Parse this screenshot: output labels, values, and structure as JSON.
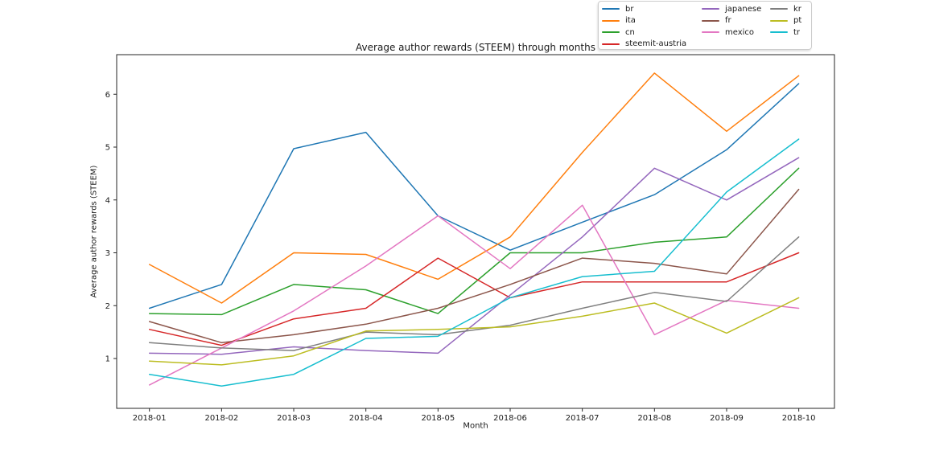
{
  "figure": {
    "background": "#ffffff",
    "spine_color": "#262626"
  },
  "chart_data": {
    "type": "line",
    "title": "Average author rewards (STEEM) through months",
    "xlabel": "Month",
    "ylabel": "Average author rewards (STEEM)",
    "categories": [
      "2018-01",
      "2018-02",
      "2018-03",
      "2018-04",
      "2018-05",
      "2018-06",
      "2018-07",
      "2018-08",
      "2018-09",
      "2018-10"
    ],
    "y_ticks": [
      1,
      2,
      3,
      4,
      5,
      6
    ],
    "ylim": [
      0.05,
      6.75
    ],
    "grid": false,
    "legend_position": "upper center, above plot, 3 columns",
    "legend_order": [
      "br",
      "ita",
      "cn",
      "steemit-austria",
      "japanese",
      "fr",
      "mexico",
      "kr",
      "pt",
      "tr"
    ],
    "series": [
      {
        "name": "br",
        "color": "#1f77b4",
        "values": [
          1.95,
          2.4,
          4.97,
          5.28,
          3.7,
          3.05,
          3.58,
          4.1,
          4.95,
          6.2
        ]
      },
      {
        "name": "ita",
        "color": "#ff7f0e",
        "values": [
          2.78,
          2.05,
          3.0,
          2.97,
          2.5,
          3.3,
          4.9,
          6.4,
          5.3,
          6.35
        ]
      },
      {
        "name": "cn",
        "color": "#2ca02c",
        "values": [
          1.85,
          1.83,
          2.4,
          2.3,
          1.85,
          3.0,
          3.0,
          3.2,
          3.3,
          4.6
        ]
      },
      {
        "name": "steemit-austria",
        "color": "#d62728",
        "values": [
          1.55,
          1.25,
          1.75,
          1.95,
          2.9,
          2.15,
          2.45,
          2.45,
          2.45,
          3.0
        ]
      },
      {
        "name": "japanese",
        "color": "#9467bd",
        "values": [
          1.1,
          1.08,
          1.22,
          1.15,
          1.1,
          2.2,
          3.3,
          4.6,
          4.0,
          4.8
        ]
      },
      {
        "name": "fr",
        "color": "#8c564b",
        "values": [
          1.7,
          1.3,
          1.45,
          1.65,
          1.95,
          2.4,
          2.9,
          2.8,
          2.6,
          4.2
        ]
      },
      {
        "name": "mexico",
        "color": "#e377c2",
        "values": [
          0.5,
          1.2,
          1.9,
          2.75,
          3.7,
          2.7,
          3.9,
          1.45,
          2.1,
          1.95
        ]
      },
      {
        "name": "kr",
        "color": "#7f7f7f",
        "values": [
          1.3,
          1.2,
          1.15,
          1.5,
          1.45,
          1.63,
          1.95,
          2.25,
          2.08,
          3.3
        ]
      },
      {
        "name": "pt",
        "color": "#bcbd22",
        "values": [
          0.95,
          0.88,
          1.05,
          1.52,
          1.55,
          1.6,
          1.8,
          2.05,
          1.48,
          2.15
        ]
      },
      {
        "name": "tr",
        "color": "#17becf",
        "values": [
          0.7,
          0.48,
          0.7,
          1.38,
          1.42,
          2.15,
          2.55,
          2.65,
          4.15,
          5.15
        ]
      }
    ]
  }
}
